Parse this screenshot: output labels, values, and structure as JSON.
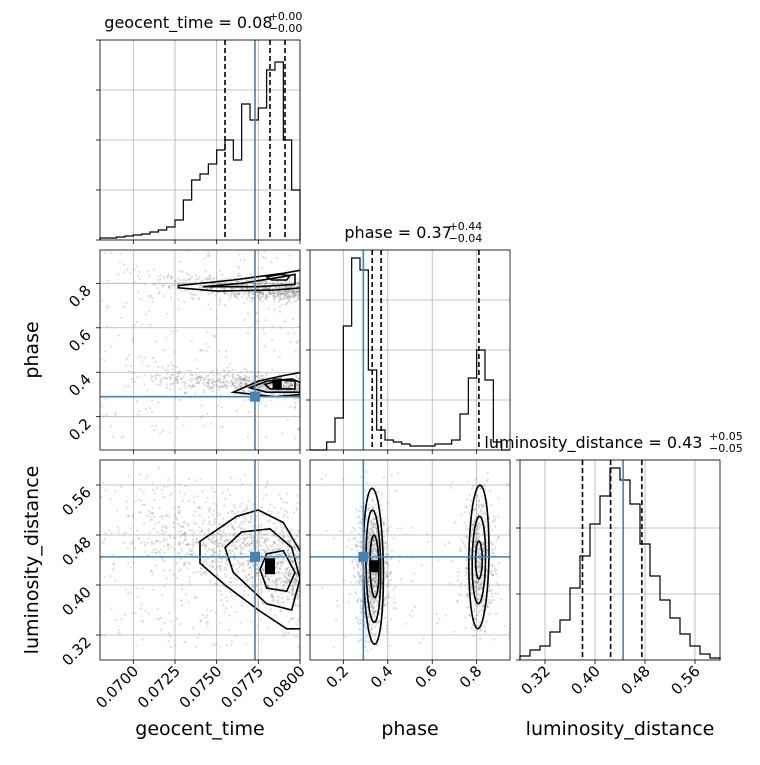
{
  "chart_data": {
    "type": "corner",
    "parameters": [
      {
        "key": "geocent_time",
        "xlabel": "geocent_time",
        "title_main": "geocent_time = 0.08",
        "title_sup": "+0.00",
        "title_sub": "−0.00",
        "range": [
          0.068,
          0.08
        ],
        "ticks": [
          0.07,
          0.0725,
          0.075,
          0.0775,
          0.08
        ],
        "tick_labels": [
          "0.0700",
          "0.0725",
          "0.0750",
          "0.0775",
          "0.0800"
        ],
        "quantiles": [
          0.0755,
          0.0782,
          0.0791
        ],
        "truth": 0.0773,
        "hist": [
          0.01,
          0.01,
          0.015,
          0.02,
          0.025,
          0.03,
          0.04,
          0.05,
          0.065,
          0.1,
          0.2,
          0.3,
          0.33,
          0.38,
          0.45,
          0.5,
          0.4,
          0.68,
          0.6,
          0.66,
          0.85,
          0.89,
          0.5,
          0.25
        ]
      },
      {
        "key": "phase",
        "xlabel": "phase",
        "ylabel": "phase",
        "title_main": "phase = 0.37",
        "title_sup": "+0.44",
        "title_sub": "−0.04",
        "range": [
          0.05,
          0.95
        ],
        "ticks": [
          0.2,
          0.4,
          0.6,
          0.8
        ],
        "tick_labels": [
          "0.2",
          "0.4",
          "0.6",
          "0.8"
        ],
        "quantiles": [
          0.33,
          0.37,
          0.81
        ],
        "truth": 0.29,
        "hist": [
          0.0,
          0.0,
          0.04,
          0.16,
          0.62,
          0.96,
          0.9,
          0.4,
          0.1,
          0.05,
          0.04,
          0.03,
          0.02,
          0.02,
          0.02,
          0.03,
          0.03,
          0.05,
          0.18,
          0.36,
          0.5,
          0.35,
          0.04,
          0.0
        ]
      },
      {
        "key": "luminosity_distance",
        "xlabel": "luminosity_distance",
        "ylabel": "luminosity_distance",
        "title_main": "luminosity_distance = 0.43",
        "title_sup": "+0.05",
        "title_sub": "−0.05",
        "range": [
          0.28,
          0.6
        ],
        "ticks": [
          0.32,
          0.4,
          0.48,
          0.56
        ],
        "tick_labels": [
          "0.32",
          "0.40",
          "0.48",
          "0.56"
        ],
        "quantiles": [
          0.38,
          0.425,
          0.475
        ],
        "truth": 0.445,
        "hist": [
          0.02,
          0.05,
          0.07,
          0.14,
          0.2,
          0.36,
          0.52,
          0.68,
          0.82,
          0.96,
          0.9,
          0.78,
          0.58,
          0.42,
          0.3,
          0.21,
          0.13,
          0.07,
          0.03,
          0.01
        ]
      }
    ],
    "scatter_color": "#808080",
    "truth_color": "#4682b4",
    "contour_color": "#000000"
  }
}
